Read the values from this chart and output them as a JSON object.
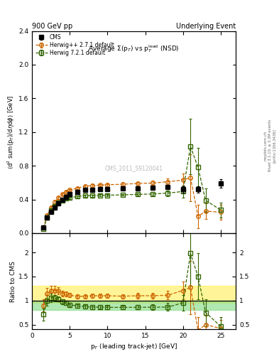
{
  "title_left": "900 GeV pp",
  "title_right": "Underlying Event",
  "plot_title": "Average Σ(p$_T$) vs p$_T^{lead}$ (NSD)",
  "ylabel_main": "⟨d² sum(p$_T$)/dηdφ⟩ [GeV]",
  "ylabel_ratio": "Ratio to CMS",
  "xlabel": "p$_T$ (leading track-jet) [GeV]",
  "watermark": "CMS_2011_S9120041",
  "right_label1": "Rivet 3.1.10, ≥ 3.3M events",
  "right_label2": "[arXiv:1306.3436]",
  "right_label3": "mcplots.cern.ch",
  "cms_x": [
    1.5,
    2.0,
    2.5,
    3.0,
    3.5,
    4.0,
    4.5,
    5.0,
    6.0,
    7.0,
    8.0,
    9.0,
    10.0,
    12.0,
    14.0,
    16.0,
    18.0,
    20.0,
    22.0,
    25.0
  ],
  "cms_y": [
    0.07,
    0.185,
    0.255,
    0.305,
    0.35,
    0.4,
    0.43,
    0.46,
    0.49,
    0.51,
    0.515,
    0.52,
    0.525,
    0.53,
    0.535,
    0.54,
    0.55,
    0.52,
    0.52,
    0.59
  ],
  "cms_yerr": [
    0.012,
    0.018,
    0.018,
    0.018,
    0.018,
    0.018,
    0.018,
    0.018,
    0.018,
    0.018,
    0.018,
    0.018,
    0.018,
    0.018,
    0.018,
    0.018,
    0.022,
    0.038,
    0.038,
    0.048
  ],
  "hw2_x": [
    1.5,
    2.0,
    2.5,
    3.0,
    3.5,
    4.0,
    4.5,
    5.0,
    6.0,
    7.0,
    8.0,
    9.0,
    10.0,
    12.0,
    14.0,
    16.0,
    18.0,
    20.0,
    21.0,
    22.0,
    23.0,
    25.0
  ],
  "hw2_y": [
    0.063,
    0.21,
    0.305,
    0.37,
    0.42,
    0.46,
    0.49,
    0.51,
    0.535,
    0.555,
    0.565,
    0.57,
    0.575,
    0.58,
    0.59,
    0.595,
    0.61,
    0.63,
    0.66,
    0.2,
    0.26,
    0.25
  ],
  "hw2_yerr": [
    0.008,
    0.015,
    0.015,
    0.015,
    0.015,
    0.015,
    0.015,
    0.015,
    0.015,
    0.015,
    0.015,
    0.015,
    0.015,
    0.015,
    0.02,
    0.025,
    0.04,
    0.08,
    0.28,
    0.14,
    0.09,
    0.09
  ],
  "hw7_x": [
    1.5,
    2.0,
    2.5,
    3.0,
    3.5,
    4.0,
    4.5,
    5.0,
    6.0,
    7.0,
    8.0,
    9.0,
    10.0,
    12.0,
    14.0,
    16.0,
    18.0,
    20.0,
    21.0,
    22.0,
    23.0,
    25.0
  ],
  "hw7_y": [
    0.05,
    0.185,
    0.27,
    0.32,
    0.36,
    0.39,
    0.41,
    0.42,
    0.435,
    0.445,
    0.445,
    0.45,
    0.45,
    0.455,
    0.46,
    0.465,
    0.475,
    0.495,
    1.03,
    0.78,
    0.39,
    0.275
  ],
  "hw7_yerr": [
    0.008,
    0.015,
    0.015,
    0.015,
    0.012,
    0.012,
    0.012,
    0.012,
    0.012,
    0.012,
    0.012,
    0.012,
    0.012,
    0.012,
    0.016,
    0.02,
    0.034,
    0.07,
    0.33,
    0.23,
    0.14,
    0.09
  ],
  "hw2_ratio_x": [
    1.5,
    2.0,
    2.5,
    3.0,
    3.5,
    4.0,
    4.5,
    5.0,
    6.0,
    7.0,
    8.0,
    9.0,
    10.0,
    12.0,
    14.0,
    16.0,
    18.0,
    20.0,
    21.0,
    22.0,
    23.0,
    25.0
  ],
  "hw2_ratio_y": [
    0.9,
    1.14,
    1.2,
    1.21,
    1.2,
    1.15,
    1.14,
    1.11,
    1.09,
    1.09,
    1.1,
    1.1,
    1.1,
    1.09,
    1.1,
    1.1,
    1.11,
    1.21,
    1.27,
    0.38,
    0.5,
    0.42
  ],
  "hw2_ratio_yerr": [
    0.13,
    0.12,
    0.1,
    0.09,
    0.07,
    0.06,
    0.055,
    0.046,
    0.044,
    0.044,
    0.044,
    0.044,
    0.044,
    0.044,
    0.053,
    0.062,
    0.09,
    0.18,
    0.55,
    0.28,
    0.19,
    0.18
  ],
  "hw7_ratio_x": [
    1.5,
    2.0,
    2.5,
    3.0,
    3.5,
    4.0,
    4.5,
    5.0,
    6.0,
    7.0,
    8.0,
    9.0,
    10.0,
    12.0,
    14.0,
    16.0,
    18.0,
    20.0,
    21.0,
    22.0,
    23.0,
    25.0
  ],
  "hw7_ratio_y": [
    0.71,
    1.0,
    1.06,
    1.05,
    1.03,
    0.975,
    0.953,
    0.913,
    0.888,
    0.873,
    0.863,
    0.865,
    0.857,
    0.858,
    0.86,
    0.861,
    0.864,
    0.952,
    1.98,
    1.5,
    0.75,
    0.466
  ],
  "hw7_ratio_yerr": [
    0.13,
    0.11,
    0.09,
    0.07,
    0.055,
    0.05,
    0.046,
    0.038,
    0.038,
    0.038,
    0.038,
    0.038,
    0.038,
    0.038,
    0.046,
    0.055,
    0.082,
    0.16,
    0.68,
    0.48,
    0.28,
    0.19
  ],
  "color_cms": "#000000",
  "color_hw2": "#cc6600",
  "color_hw7": "#336600",
  "color_hw2_band": "#ffee44",
  "color_hw7_band": "#88dd88",
  "xlim": [
    0,
    27
  ],
  "ylim_main": [
    0.0,
    2.4
  ],
  "ylim_ratio": [
    0.4,
    2.4
  ],
  "yticks_main": [
    0.0,
    0.4,
    0.8,
    1.2,
    1.6,
    2.0,
    2.4
  ],
  "yticks_ratio": [
    0.5,
    1.0,
    1.5,
    2.0
  ],
  "xticks": [
    0,
    5,
    10,
    15,
    20,
    25
  ]
}
